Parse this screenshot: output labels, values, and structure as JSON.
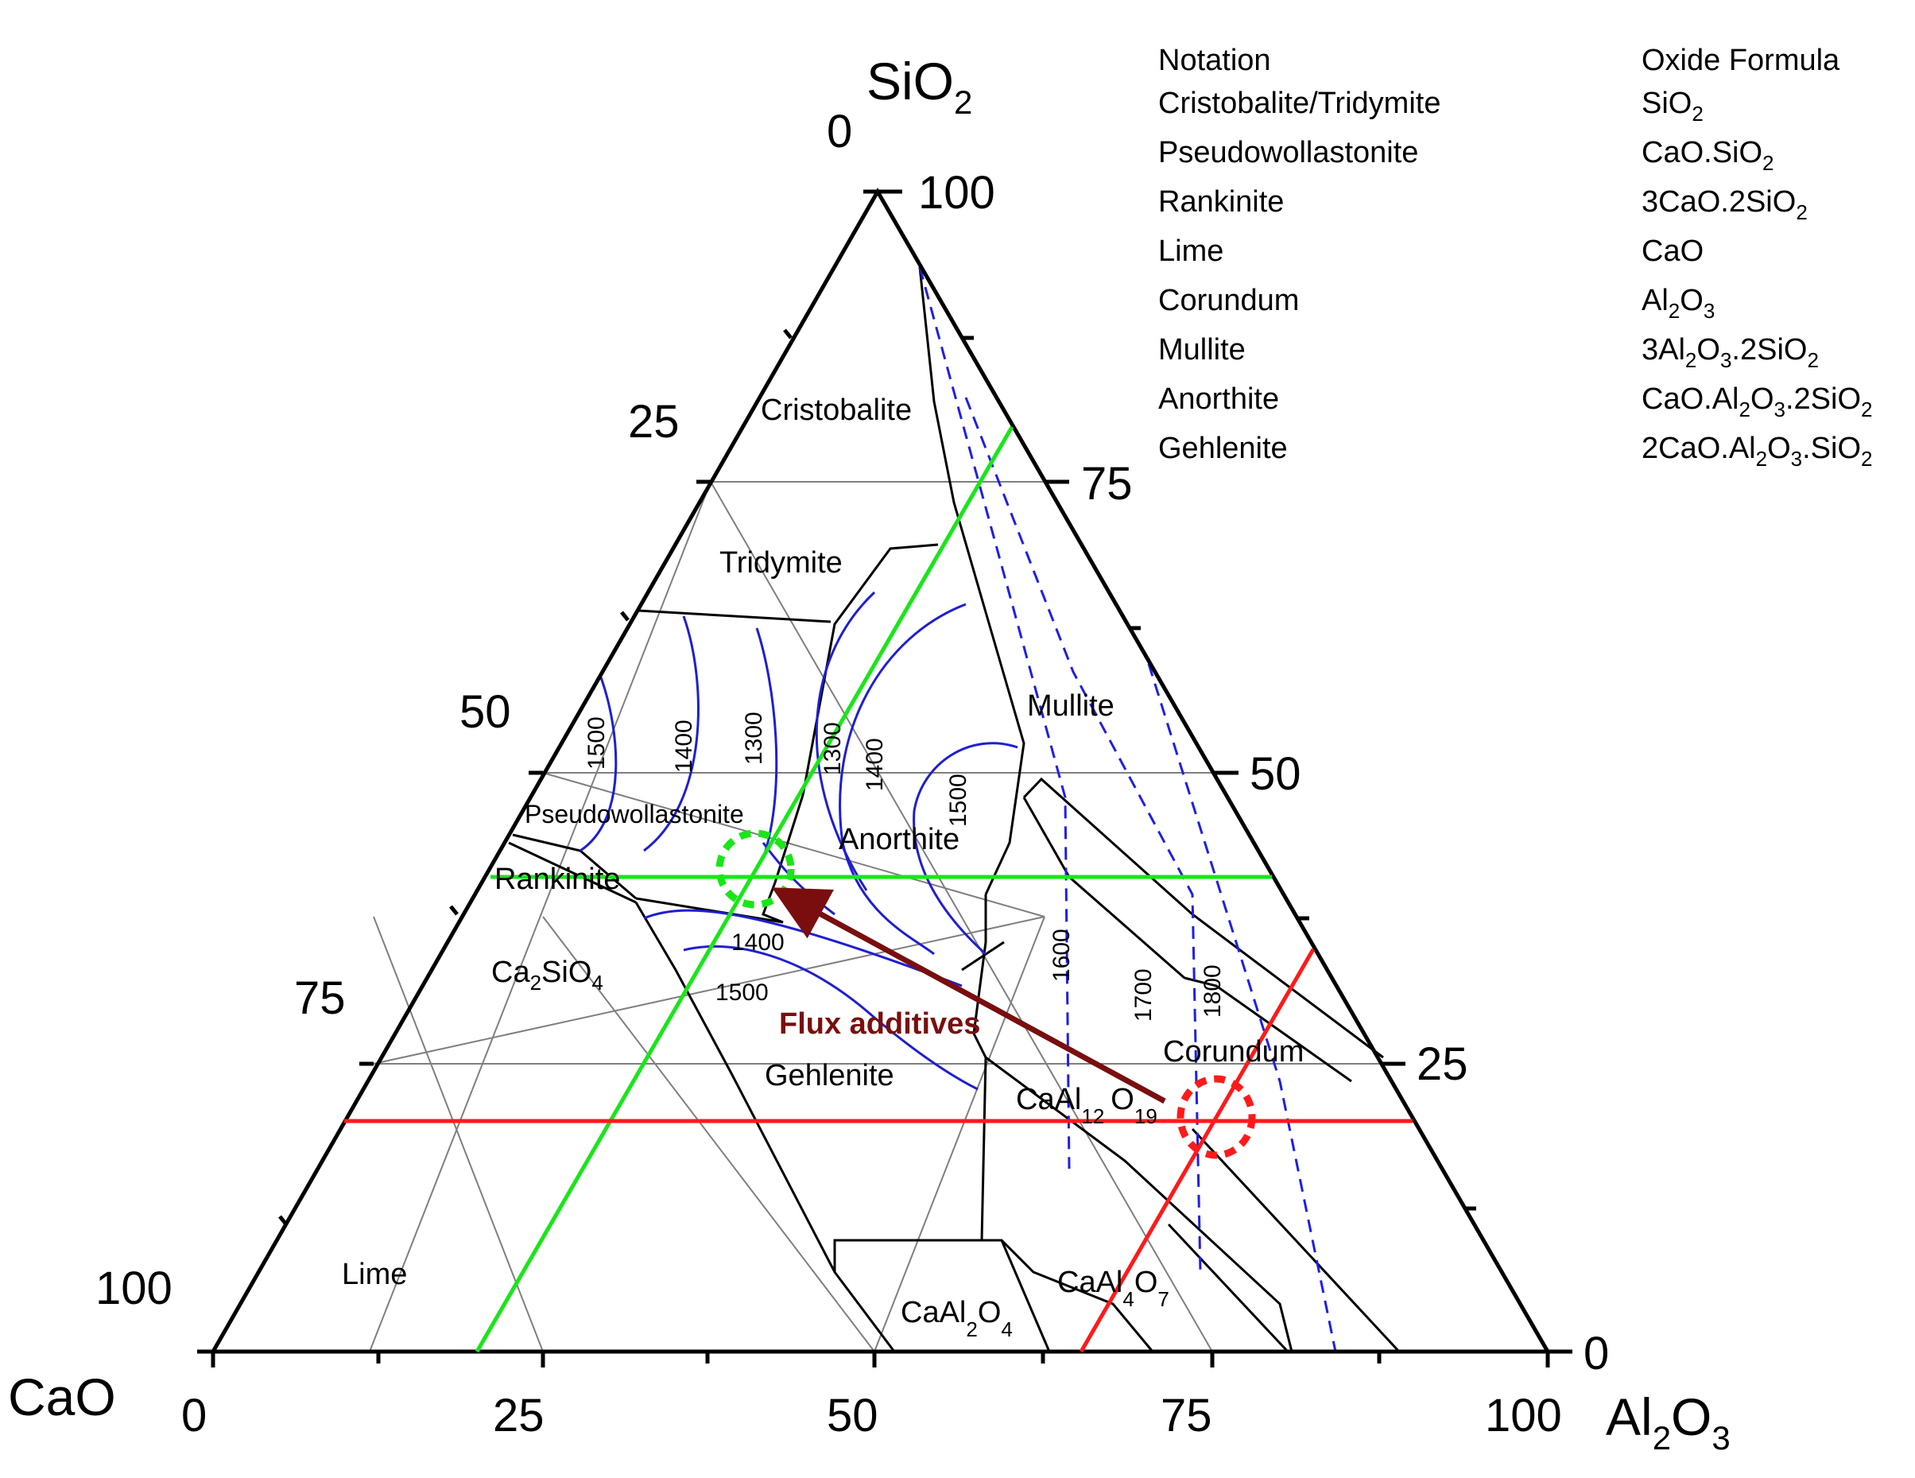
{
  "axes": {
    "top": {
      "pre": "SiO",
      "sub": "2"
    },
    "left": {
      "pre": "CaO"
    },
    "right": {
      "pre": "Al",
      "sub1": "2",
      "mid": "O",
      "sub2": "3"
    }
  },
  "ticks": {
    "bottom": [
      "0",
      "25",
      "50",
      "75",
      "100"
    ],
    "left": [
      "0",
      "25",
      "50",
      "75",
      "100"
    ],
    "right": [
      "100",
      "75",
      "50",
      "25",
      "0"
    ]
  },
  "regions": {
    "cristobalite": "Cristobalite",
    "tridymite": "Tridymite",
    "mullite": "Mullite",
    "pseudowollastonite": "Pseudowollastonite",
    "rankinite": "Rankinite",
    "anorthite": "Anorthite",
    "ca2sio4_pre": "Ca",
    "ca2sio4_s1": "2",
    "ca2sio4_mid": "SiO",
    "ca2sio4_s2": "4",
    "gehlenite": "Gehlenite",
    "corundum": "Corundum",
    "lime": "Lime",
    "ca12_pre": "CaAl",
    "ca12_s1": "12",
    "ca12_mid": "O",
    "ca12_s2": "19",
    "ca4_pre": "CaAl",
    "ca4_s1": "4",
    "ca4_mid": "O",
    "ca4_s2": "7",
    "ca2_pre": "CaAl",
    "ca2_s1": "2",
    "ca2_mid": "O",
    "ca2_s2": "4"
  },
  "isotherms": [
    "1500",
    "1400",
    "1300",
    "1300",
    "1400",
    "1500",
    "1400",
    "1500",
    "1600",
    "1700",
    "1800"
  ],
  "annotation": {
    "flux": "Flux additives"
  },
  "table": {
    "header": {
      "notation": "Notation",
      "formula": "Oxide Formula"
    },
    "rows": [
      {
        "notation": "Cristobalite/Tridymite",
        "formula": [
          {
            "t": "SiO"
          },
          {
            "s": "2"
          }
        ]
      },
      {
        "notation": "Pseudowollastonite",
        "formula": [
          {
            "t": "CaO.SiO"
          },
          {
            "s": "2"
          }
        ]
      },
      {
        "notation": "Rankinite",
        "formula": [
          {
            "t": "3CaO.2SiO"
          },
          {
            "s": "2"
          }
        ]
      },
      {
        "notation": "Lime",
        "formula": [
          {
            "t": "CaO"
          }
        ]
      },
      {
        "notation": "Corundum",
        "formula": [
          {
            "t": "Al"
          },
          {
            "s": "2"
          },
          {
            "t": "O"
          },
          {
            "s": "3"
          }
        ]
      },
      {
        "notation": "Mullite",
        "formula": [
          {
            "t": "3Al"
          },
          {
            "s": "2"
          },
          {
            "t": "O"
          },
          {
            "s": "3"
          },
          {
            "t": ".2SiO"
          },
          {
            "s": "2"
          }
        ]
      },
      {
        "notation": "Anorthite",
        "formula": [
          {
            "t": "CaO.Al"
          },
          {
            "s": "2"
          },
          {
            "t": "O"
          },
          {
            "s": "3"
          },
          {
            "t": ".2SiO"
          },
          {
            "s": "2"
          }
        ]
      },
      {
        "notation": "Gehlenite",
        "formula": [
          {
            "t": "2CaO.Al"
          },
          {
            "s": "2"
          },
          {
            "t": "O"
          },
          {
            "s": "3"
          },
          {
            "t": ".SiO"
          },
          {
            "s": "2"
          }
        ]
      }
    ]
  },
  "colors": {
    "frame": "#000000",
    "grid": "#7f7f7f",
    "isotherm": "#1f1fd0",
    "dashed": "#1f1fe6",
    "green": "#19e619",
    "red": "#ff1a1a",
    "arrow": "#7a0e0e"
  }
}
